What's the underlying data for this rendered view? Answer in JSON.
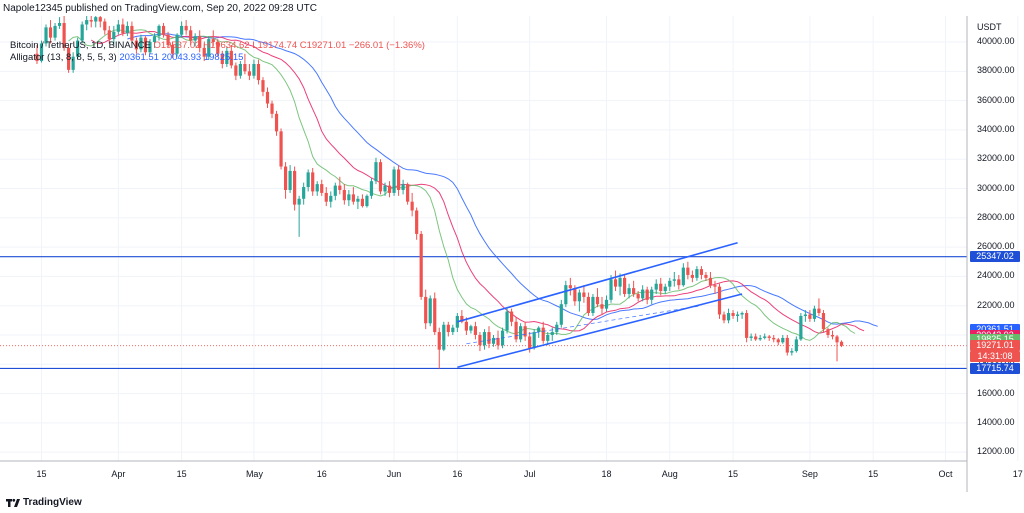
{
  "caption": "Napole12345 published on TradingView.com, Sep 20, 2022 09:28 UTC",
  "legend": {
    "symbol_text": "Bitcoin / TetherUS, 1D, BINANCE",
    "ohlc_text": "O19537.02  H19634.62  L19174.74  C19271.01  −266.01 (−1.36%)",
    "alligator_text": "Alligator (13, 8, 8, 5, 5, 3)",
    "alligator_values": "20361.51  20043.93  19825.15"
  },
  "footer": {
    "brand": "TradingView"
  },
  "colors": {
    "up": "#26a69a",
    "down": "#ef5350",
    "jaw": "#2962ff",
    "teeth": "#e91e63",
    "lips": "#66bb6a",
    "level_line": "#1e4fd6",
    "channel": "#2962ff"
  },
  "chart_data": {
    "type": "candlestick",
    "currency_label": "USDT",
    "y_ticks": [
      40000,
      38000,
      36000,
      34000,
      32000,
      30000,
      28000,
      26000,
      24000,
      22000,
      20000,
      18000,
      16000,
      14000,
      12000
    ],
    "y_tick_labels": [
      "40000.00",
      "38000.00",
      "36000.00",
      "34000.00",
      "32000.00",
      "30000.00",
      "28000.00",
      "26000.00",
      "24000.00",
      "22000.00",
      "20000.00",
      "18000.00",
      "16000.00",
      "14000.00",
      "12000.00"
    ],
    "ylim": [
      10800,
      42300
    ],
    "x_ticks": [
      {
        "day": 0,
        "label": "15"
      },
      {
        "day": 17,
        "label": "Apr"
      },
      {
        "day": 31,
        "label": "15"
      },
      {
        "day": 47,
        "label": "May"
      },
      {
        "day": 62,
        "label": "16"
      },
      {
        "day": 78,
        "label": "Jun"
      },
      {
        "day": 92,
        "label": "16"
      },
      {
        "day": 108,
        "label": "Jul"
      },
      {
        "day": 125,
        "label": "18"
      },
      {
        "day": 139,
        "label": "Aug"
      },
      {
        "day": 153,
        "label": "15"
      },
      {
        "day": 170,
        "label": "Sep"
      },
      {
        "day": 184,
        "label": "15"
      },
      {
        "day": 200,
        "label": "Oct"
      },
      {
        "day": 216,
        "label": "17"
      }
    ],
    "horizontal_levels": [
      {
        "price": 25347.02,
        "label": "25347.02"
      },
      {
        "price": 17715.74,
        "label": "17715.74"
      }
    ],
    "price_tags": [
      {
        "price": 20361.51,
        "label": "20361.51",
        "color": "#2962ff"
      },
      {
        "price": 20043.93,
        "label": "20043.93",
        "color": "#e91e63"
      },
      {
        "price": 19825.15,
        "label": "19825.15",
        "color": "#66bb6a"
      },
      {
        "price": 19271.01,
        "label": "19271.01",
        "color": "#ef5350"
      },
      {
        "label": "14:31:08",
        "color": "#ef5350"
      }
    ],
    "last_price": 19271.01,
    "channel": {
      "upper": [
        [
          92,
          20900
        ],
        [
          154,
          26300
        ]
      ],
      "lower": [
        [
          92,
          17800
        ],
        [
          155,
          22800
        ]
      ],
      "mid": [
        [
          94,
          19400
        ],
        [
          146,
          22000
        ]
      ]
    },
    "candles": [
      [
        -1,
        39200,
        39800,
        38500,
        38700
      ],
      [
        0,
        38700,
        40100,
        38600,
        39900
      ],
      [
        1,
        39900,
        41200,
        39700,
        41000
      ],
      [
        2,
        41000,
        41500,
        39900,
        40300
      ],
      [
        3,
        40300,
        41300,
        40100,
        41100
      ],
      [
        4,
        41100,
        41700,
        40900,
        41300
      ],
      [
        5,
        41300,
        41800,
        39400,
        39600
      ],
      [
        6,
        39600,
        39800,
        37900,
        38100
      ],
      [
        7,
        38100,
        39300,
        37900,
        39000
      ],
      [
        8,
        39000,
        40300,
        38800,
        40100
      ],
      [
        9,
        40100,
        41400,
        39900,
        41200
      ],
      [
        10,
        41200,
        41900,
        40800,
        41500
      ],
      [
        11,
        41500,
        41800,
        41000,
        41400
      ],
      [
        12,
        41400,
        41900,
        41000,
        41700
      ],
      [
        13,
        41700,
        41800,
        41000,
        41400
      ],
      [
        14,
        41400,
        41600,
        40500,
        40800
      ],
      [
        15,
        40800,
        41100,
        39900,
        40200
      ],
      [
        16,
        40200,
        41100,
        39800,
        40700
      ],
      [
        17,
        40700,
        41500,
        40500,
        41200
      ],
      [
        18,
        41200,
        41600,
        40400,
        40600
      ],
      [
        19,
        40600,
        41400,
        40400,
        41100
      ],
      [
        20,
        41100,
        41400,
        39900,
        40100
      ],
      [
        21,
        40100,
        40300,
        39200,
        39500
      ],
      [
        22,
        39500,
        40500,
        39300,
        40300
      ],
      [
        23,
        40300,
        40400,
        39100,
        39300
      ],
      [
        24,
        39300,
        40200,
        39200,
        40000
      ],
      [
        25,
        40000,
        40600,
        39600,
        40400
      ],
      [
        26,
        40400,
        41200,
        40100,
        41100
      ],
      [
        27,
        41100,
        41300,
        40300,
        40500
      ],
      [
        28,
        40500,
        40700,
        39600,
        39800
      ],
      [
        29,
        39800,
        40000,
        38900,
        39200
      ],
      [
        30,
        39200,
        40600,
        39000,
        40500
      ],
      [
        31,
        40500,
        41400,
        40300,
        41100
      ],
      [
        32,
        41100,
        41500,
        40500,
        40800
      ],
      [
        33,
        40800,
        41100,
        39800,
        40100
      ],
      [
        34,
        40100,
        40600,
        39700,
        40400
      ],
      [
        35,
        40400,
        40800,
        39300,
        39600
      ],
      [
        36,
        39600,
        39900,
        38700,
        39000
      ],
      [
        37,
        39000,
        40400,
        38800,
        40200
      ],
      [
        38,
        40200,
        40800,
        39700,
        40000
      ],
      [
        39,
        40000,
        40200,
        39000,
        39200
      ],
      [
        40,
        39200,
        39400,
        38200,
        38500
      ],
      [
        41,
        38500,
        39700,
        38300,
        39400
      ],
      [
        42,
        39400,
        39800,
        38200,
        38400
      ],
      [
        43,
        38400,
        38600,
        37400,
        37700
      ],
      [
        44,
        37700,
        38700,
        37500,
        38500
      ],
      [
        45,
        38500,
        39200,
        37800,
        38000
      ],
      [
        46,
        38000,
        38500,
        37400,
        37700
      ],
      [
        47,
        37700,
        38800,
        37500,
        38500
      ],
      [
        48,
        38500,
        38800,
        37100,
        37400
      ],
      [
        49,
        37400,
        37600,
        36300,
        36600
      ],
      [
        50,
        36600,
        36900,
        35500,
        35800
      ],
      [
        51,
        35800,
        36000,
        34800,
        35100
      ],
      [
        52,
        35100,
        35300,
        33600,
        33900
      ],
      [
        53,
        33900,
        34100,
        31300,
        31500
      ],
      [
        54,
        31500,
        31800,
        29300,
        29900
      ],
      [
        55,
        29900,
        31600,
        29700,
        31200
      ],
      [
        56,
        31200,
        31500,
        28500,
        28900
      ],
      [
        57,
        28900,
        29500,
        26700,
        29300
      ],
      [
        58,
        29300,
        30400,
        28900,
        30100
      ],
      [
        59,
        30100,
        31300,
        29800,
        31100
      ],
      [
        60,
        31100,
        31400,
        29500,
        29800
      ],
      [
        61,
        29800,
        30500,
        29500,
        30300
      ],
      [
        62,
        30300,
        30600,
        29500,
        29700
      ],
      [
        63,
        29700,
        30100,
        28800,
        29100
      ],
      [
        64,
        29100,
        29800,
        28700,
        29500
      ],
      [
        65,
        29500,
        30400,
        29200,
        30200
      ],
      [
        66,
        30200,
        30800,
        29600,
        29900
      ],
      [
        67,
        29900,
        30300,
        28900,
        29200
      ],
      [
        68,
        29200,
        29900,
        28800,
        29600
      ],
      [
        69,
        29600,
        30100,
        28900,
        29100
      ],
      [
        70,
        29100,
        29500,
        28600,
        29300
      ],
      [
        71,
        29300,
        29600,
        28700,
        28800
      ],
      [
        72,
        28800,
        29600,
        28700,
        29500
      ],
      [
        73,
        29500,
        30700,
        29300,
        30500
      ],
      [
        74,
        30500,
        32100,
        30300,
        31800
      ],
      [
        75,
        31800,
        32000,
        29600,
        29800
      ],
      [
        76,
        29800,
        30400,
        29500,
        30200
      ],
      [
        77,
        30200,
        30500,
        29400,
        29700
      ],
      [
        78,
        29700,
        31500,
        29500,
        31300
      ],
      [
        79,
        31300,
        31600,
        29500,
        29900
      ],
      [
        80,
        29900,
        30600,
        29600,
        30300
      ],
      [
        81,
        30300,
        30400,
        28900,
        29100
      ],
      [
        82,
        29100,
        29700,
        28100,
        28500
      ],
      [
        83,
        28500,
        28700,
        26500,
        26900
      ],
      [
        84,
        26900,
        27100,
        22400,
        22600
      ],
      [
        85,
        22600,
        23100,
        20400,
        20800
      ],
      [
        86,
        20800,
        22700,
        20600,
        22500
      ],
      [
        87,
        22500,
        22900,
        20000,
        20200
      ],
      [
        88,
        20200,
        20500,
        17700,
        19000
      ],
      [
        89,
        19000,
        20900,
        18900,
        20700
      ],
      [
        90,
        20700,
        20900,
        19900,
        20200
      ],
      [
        91,
        20200,
        20700,
        20000,
        20500
      ],
      [
        92,
        20500,
        21500,
        20200,
        21300
      ],
      [
        93,
        21300,
        21700,
        20800,
        20900
      ],
      [
        94,
        20900,
        21200,
        20000,
        20300
      ],
      [
        95,
        20300,
        20700,
        20100,
        20600
      ],
      [
        96,
        20600,
        20900,
        19700,
        20000
      ],
      [
        97,
        20000,
        20200,
        18900,
        19300
      ],
      [
        98,
        19300,
        20400,
        19000,
        20200
      ],
      [
        99,
        20200,
        20600,
        19100,
        19400
      ],
      [
        100,
        19400,
        20000,
        19200,
        19800
      ],
      [
        101,
        19800,
        20300,
        19000,
        19300
      ],
      [
        102,
        19300,
        20500,
        19100,
        20300
      ],
      [
        103,
        20300,
        21900,
        20100,
        21600
      ],
      [
        104,
        21600,
        21800,
        20600,
        20900
      ],
      [
        105,
        20900,
        21200,
        19500,
        19700
      ],
      [
        106,
        19700,
        20800,
        19500,
        20600
      ],
      [
        107,
        20600,
        20900,
        19600,
        19900
      ],
      [
        108,
        19900,
        20200,
        18800,
        19100
      ],
      [
        109,
        19100,
        20400,
        19000,
        20200
      ],
      [
        110,
        20200,
        20600,
        19800,
        20500
      ],
      [
        111,
        20500,
        20900,
        19400,
        19600
      ],
      [
        112,
        19600,
        20200,
        19300,
        20000
      ],
      [
        113,
        20000,
        20500,
        19600,
        20200
      ],
      [
        114,
        20200,
        20900,
        20000,
        20700
      ],
      [
        115,
        20700,
        22400,
        20500,
        22100
      ],
      [
        116,
        22100,
        23700,
        21900,
        23400
      ],
      [
        117,
        23400,
        23900,
        22700,
        23200
      ],
      [
        118,
        23200,
        23400,
        22000,
        22300
      ],
      [
        119,
        22300,
        23100,
        21600,
        22900
      ],
      [
        120,
        22900,
        23400,
        22200,
        22600
      ],
      [
        121,
        22600,
        22900,
        21300,
        21500
      ],
      [
        122,
        21500,
        22800,
        21300,
        22600
      ],
      [
        123,
        22600,
        23200,
        21900,
        22100
      ],
      [
        124,
        22100,
        22600,
        21400,
        21800
      ],
      [
        125,
        21800,
        22700,
        21600,
        22400
      ],
      [
        126,
        22400,
        24100,
        22200,
        23800
      ],
      [
        127,
        23800,
        24400,
        23000,
        23300
      ],
      [
        128,
        23300,
        24200,
        22700,
        23900
      ],
      [
        129,
        23900,
        24100,
        22600,
        22800
      ],
      [
        130,
        22800,
        23500,
        22500,
        23200
      ],
      [
        131,
        23200,
        23700,
        22600,
        22800
      ],
      [
        132,
        22800,
        23000,
        22300,
        22500
      ],
      [
        133,
        22500,
        23400,
        22300,
        23100
      ],
      [
        134,
        23100,
        23300,
        22100,
        22400
      ],
      [
        135,
        22400,
        23300,
        22100,
        23100
      ],
      [
        136,
        23100,
        23800,
        22800,
        23500
      ],
      [
        137,
        23500,
        23900,
        22700,
        23000
      ],
      [
        138,
        23000,
        23500,
        22800,
        23300
      ],
      [
        139,
        23300,
        23900,
        23000,
        23700
      ],
      [
        140,
        23700,
        24300,
        23300,
        23800
      ],
      [
        141,
        23800,
        24100,
        23100,
        23400
      ],
      [
        142,
        23400,
        24900,
        23300,
        24600
      ],
      [
        143,
        24600,
        25000,
        23800,
        24100
      ],
      [
        144,
        24100,
        24400,
        23600,
        23900
      ],
      [
        145,
        23900,
        24700,
        23700,
        24500
      ],
      [
        146,
        24500,
        24700,
        23800,
        24100
      ],
      [
        147,
        24100,
        24300,
        23700,
        23900
      ],
      [
        148,
        23900,
        24300,
        23200,
        23400
      ],
      [
        149,
        23400,
        23700,
        22800,
        23300
      ],
      [
        150,
        23300,
        23500,
        21100,
        21400
      ],
      [
        151,
        21400,
        21600,
        20800,
        21000
      ],
      [
        152,
        21000,
        21800,
        20800,
        21500
      ],
      [
        153,
        21500,
        21700,
        21100,
        21300
      ],
      [
        154,
        21300,
        21600,
        20900,
        21400
      ],
      [
        155,
        21400,
        21600,
        21100,
        21500
      ],
      [
        156,
        21500,
        21700,
        19500,
        19800
      ],
      [
        157,
        19800,
        20100,
        19600,
        19900
      ],
      [
        158,
        19900,
        20100,
        19600,
        19700
      ],
      [
        159,
        19700,
        20000,
        19600,
        19800
      ],
      [
        160,
        19800,
        20100,
        19700,
        19900
      ],
      [
        161,
        19900,
        20000,
        19600,
        19800
      ],
      [
        162,
        19800,
        20000,
        19500,
        19700
      ],
      [
        163,
        19700,
        19800,
        19300,
        19500
      ],
      [
        164,
        19500,
        20000,
        19400,
        19800
      ],
      [
        165,
        19800,
        20000,
        18600,
        18800
      ],
      [
        166,
        18800,
        19100,
        18600,
        18900
      ],
      [
        167,
        18900,
        19900,
        18800,
        19700
      ],
      [
        168,
        19700,
        21500,
        19600,
        21300
      ],
      [
        169,
        21300,
        21700,
        20900,
        21400
      ],
      [
        170,
        21400,
        21700,
        20900,
        21100
      ],
      [
        171,
        21100,
        22000,
        20900,
        21800
      ],
      [
        172,
        21800,
        22500,
        21300,
        21500
      ],
      [
        173,
        21500,
        21700,
        20200,
        20400
      ],
      [
        174,
        20400,
        20500,
        19800,
        20000
      ],
      [
        175,
        20000,
        20300,
        19700,
        19900
      ],
      [
        176,
        19900,
        20000,
        18200,
        19500
      ],
      [
        177,
        19537.02,
        19634.62,
        19174.74,
        19271.01
      ]
    ]
  }
}
